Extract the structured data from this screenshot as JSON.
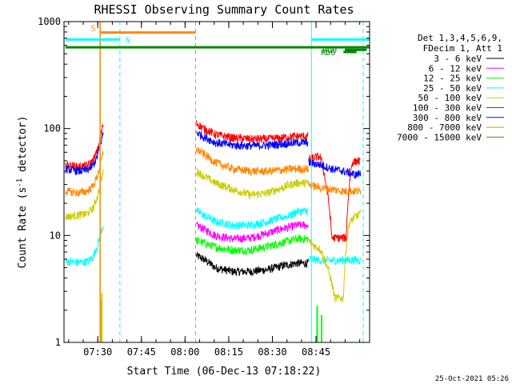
{
  "chart_data": {
    "type": "line",
    "title": "RHESSI Observing Summary Count Rates",
    "ylabel_main": "Count Rate (s",
    "ylabel_sup": "-1",
    "ylabel_tail": " detector",
    "ylabel_end": ")",
    "xlabel": "Start Time (06-Dec-13 07:18:22)",
    "timestamp": "25-Oct-2021 05:26",
    "xlim_minutes": [
      0,
      105
    ],
    "ylim": [
      1,
      1000
    ],
    "yscale": "log",
    "x_ticks": [
      {
        "label": "07:30",
        "minutes": 11.6
      },
      {
        "label": "07:45",
        "minutes": 26.6
      },
      {
        "label": "08:00",
        "minutes": 41.6
      },
      {
        "label": "08:15",
        "minutes": 56.6
      },
      {
        "label": "08:30",
        "minutes": 71.6
      },
      {
        "label": "08:45",
        "minutes": 86.6
      }
    ],
    "y_ticks": [
      {
        "label": "1",
        "value": 1
      },
      {
        "label": "10",
        "value": 10
      },
      {
        "label": "100",
        "value": 100
      },
      {
        "label": "1000",
        "value": 1000
      }
    ],
    "legend_header": [
      "Det 1,3,4,5,6,9,",
      "FDecim 1, Att 1"
    ],
    "legend_position": "right",
    "series": [
      {
        "name": "3 - 6 keV",
        "color": "#000000",
        "points": [
          [
            45.5,
            6.5
          ],
          [
            48,
            6
          ],
          [
            52,
            5
          ],
          [
            58,
            4.6
          ],
          [
            64,
            4.6
          ],
          [
            70,
            4.8
          ],
          [
            75,
            5.2
          ],
          [
            78,
            5.4
          ],
          [
            80,
            5.5
          ],
          [
            84,
            5.5
          ]
        ]
      },
      {
        "name": "6 - 12 keV",
        "color": "#ff00ff",
        "points": [
          [
            45.5,
            12.5
          ],
          [
            48,
            11.5
          ],
          [
            52,
            10
          ],
          [
            58,
            9.3
          ],
          [
            64,
            9.5
          ],
          [
            70,
            10.5
          ],
          [
            75,
            11.6
          ],
          [
            78,
            12
          ],
          [
            80,
            12.5
          ],
          [
            84,
            12.5
          ]
        ]
      },
      {
        "name": "12 - 25 keV",
        "color": "#00ff00",
        "points": [
          [
            45.5,
            9
          ],
          [
            48,
            8.5
          ],
          [
            52,
            7.8
          ],
          [
            58,
            7.3
          ],
          [
            64,
            7.3
          ],
          [
            70,
            7.9
          ],
          [
            75,
            8.6
          ],
          [
            78,
            9
          ],
          [
            80,
            9.3
          ],
          [
            84,
            9.3
          ]
        ]
      },
      {
        "name": "25 - 50 keV",
        "color": "#00ffff",
        "points": [
          [
            0.5,
            5.7
          ],
          [
            5,
            5.6
          ],
          [
            8,
            5.7
          ],
          [
            10,
            6.3
          ],
          [
            11.5,
            8
          ],
          [
            12.5,
            10
          ],
          [
            13.5,
            13
          ]
        ]
      },
      {
        "name": "25 - 50 keV",
        "color": "#00ffff",
        "points": [
          [
            45.5,
            17
          ],
          [
            48,
            15.5
          ],
          [
            52,
            13.5
          ],
          [
            58,
            12.5
          ],
          [
            64,
            12.5
          ],
          [
            70,
            13.5
          ],
          [
            75,
            14.8
          ],
          [
            78,
            15.5
          ],
          [
            80,
            16.8
          ],
          [
            84,
            17
          ]
        ]
      },
      {
        "name": "25 - 50 keV",
        "color": "#00ffff",
        "points": [
          [
            84,
            6
          ],
          [
            90,
            5.8
          ],
          [
            96,
            5.9
          ],
          [
            102,
            5.9
          ]
        ]
      },
      {
        "name": "50 - 100 keV",
        "color": "#cccc00",
        "points": [
          [
            0.5,
            15
          ],
          [
            5,
            15.5
          ],
          [
            8,
            16
          ],
          [
            10,
            18
          ],
          [
            11.5,
            23
          ],
          [
            12.5,
            30
          ],
          [
            13.5,
            40
          ]
        ]
      },
      {
        "name": "50 - 100 keV",
        "color": "#cccc00",
        "points": [
          [
            45.5,
            40
          ],
          [
            48,
            36
          ],
          [
            52,
            31
          ],
          [
            58,
            27
          ],
          [
            64,
            24
          ],
          [
            70,
            25
          ],
          [
            75,
            28
          ],
          [
            78,
            30
          ],
          [
            80,
            31
          ],
          [
            84,
            31
          ]
        ]
      },
      {
        "name": "50 - 100 keV",
        "color": "#cccc00",
        "points": [
          [
            84,
            9
          ],
          [
            86,
            8
          ],
          [
            88,
            7.5
          ],
          [
            93,
            2.6
          ],
          [
            96,
            2.6
          ],
          [
            98,
            13
          ],
          [
            100,
            15
          ],
          [
            102,
            16
          ]
        ]
      },
      {
        "name": "100 - 300 keV",
        "color": "#ff0000",
        "points": [
          [
            0.5,
            46
          ],
          [
            5,
            44
          ],
          [
            8,
            45
          ],
          [
            10,
            50
          ],
          [
            11.5,
            62
          ],
          [
            12.5,
            82
          ],
          [
            13.5,
            110
          ]
        ]
      },
      {
        "name": "100 - 300 keV",
        "color": "#ff0000",
        "points": [
          [
            45.5,
            112
          ],
          [
            48,
            100
          ],
          [
            52,
            88
          ],
          [
            58,
            82
          ],
          [
            64,
            80
          ],
          [
            70,
            80
          ],
          [
            75,
            82
          ],
          [
            78,
            84
          ],
          [
            80,
            85
          ],
          [
            84,
            85
          ]
        ]
      },
      {
        "name": "100 - 300 keV",
        "color": "#ff0000",
        "points": [
          [
            84,
            52
          ],
          [
            88,
            55
          ],
          [
            90,
            30
          ],
          [
            92,
            9.5
          ],
          [
            97,
            9.5
          ],
          [
            99,
            48
          ],
          [
            101,
            50
          ],
          [
            102,
            48
          ]
        ]
      },
      {
        "name": "300 - 800 keV",
        "color": "#0000ff",
        "points": [
          [
            0.5,
            42
          ],
          [
            5,
            40
          ],
          [
            8,
            41
          ],
          [
            10,
            45
          ],
          [
            11.5,
            55
          ],
          [
            12.5,
            70
          ],
          [
            13.5,
            92
          ]
        ]
      },
      {
        "name": "300 - 800 keV",
        "color": "#0000ff",
        "points": [
          [
            45.5,
            92
          ],
          [
            48,
            84
          ],
          [
            52,
            74
          ],
          [
            58,
            70
          ],
          [
            64,
            69
          ],
          [
            70,
            70
          ],
          [
            75,
            72
          ],
          [
            78,
            73
          ],
          [
            80,
            74
          ],
          [
            84,
            74
          ]
        ]
      },
      {
        "name": "300 - 800 keV",
        "color": "#0000ff",
        "points": [
          [
            84,
            48
          ],
          [
            88,
            46
          ],
          [
            92,
            42
          ],
          [
            96,
            40
          ],
          [
            100,
            37
          ],
          [
            102,
            38
          ]
        ]
      },
      {
        "name": "800 - 7000 keV",
        "color": "#ff8800",
        "points": [
          [
            0.5,
            26
          ],
          [
            5,
            25
          ],
          [
            8,
            26
          ],
          [
            10,
            29
          ],
          [
            11.5,
            36
          ],
          [
            12.5,
            46
          ],
          [
            13.5,
            60
          ]
        ]
      },
      {
        "name": "800 - 7000 keV",
        "color": "#ff8800",
        "points": [
          [
            45.5,
            64
          ],
          [
            48,
            58
          ],
          [
            52,
            48
          ],
          [
            58,
            42
          ],
          [
            64,
            40
          ],
          [
            70,
            40
          ],
          [
            75,
            41
          ],
          [
            78,
            42
          ],
          [
            80,
            42
          ],
          [
            84,
            42
          ]
        ]
      },
      {
        "name": "800 - 7000 keV",
        "color": "#ff8800",
        "points": [
          [
            84,
            30
          ],
          [
            88,
            28
          ],
          [
            92,
            27
          ],
          [
            96,
            26
          ],
          [
            100,
            26
          ],
          [
            102,
            26
          ]
        ]
      },
      {
        "name": "7000 - 15000 keV",
        "color": "#996633",
        "points": []
      }
    ],
    "green_spikes": [
      {
        "x": 12.5,
        "top": 2.5,
        "color": "#00ff00"
      },
      {
        "x": 13.0,
        "top": 2.9,
        "color": "#cccc00"
      },
      {
        "x": 87.0,
        "top": 2.2,
        "color": "#00ff00"
      },
      {
        "x": 88.5,
        "top": 1.8,
        "color": "#00ff00"
      }
    ],
    "bars": [
      {
        "label": "S",
        "color": "#ff8800",
        "start": 12.5,
        "end": 45.2,
        "level": 790
      },
      {
        "label": "N",
        "color": "#00ffff",
        "start": 0.5,
        "end": 19.2,
        "level": 680
      },
      {
        "label": "",
        "color": "#00ffff",
        "start": 85.0,
        "end": 105,
        "level": 680
      },
      {
        "label": "",
        "color": "#008800",
        "start": 0.5,
        "end": 105,
        "level": 575
      },
      {
        "label": "RD0",
        "color": "#008800",
        "start": 96.5,
        "end": 104,
        "level": 545
      },
      {
        "label": "RD6",
        "color": "#008800",
        "start": 96,
        "end": 100.5,
        "level": 520
      }
    ],
    "vlines": [
      {
        "x": 12.3,
        "color": "#00ffff",
        "style": "solid"
      },
      {
        "x": 12.5,
        "color": "#ff8800",
        "style": "solid"
      },
      {
        "x": 19.2,
        "color": "#00ffff",
        "style": "dashed"
      },
      {
        "x": 45.2,
        "color": "#ff8800",
        "style": "dashed"
      },
      {
        "x": 85.0,
        "color": "#00ffff",
        "style": "solid"
      },
      {
        "x": 102.8,
        "color": "#00ffff",
        "style": "dashed"
      }
    ]
  }
}
